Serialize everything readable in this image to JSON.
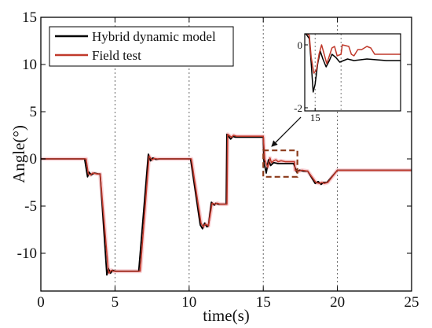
{
  "chart_data": {
    "type": "line",
    "xlabel": "time(s)",
    "ylabel": "Angle(°)",
    "xlim": [
      0,
      25
    ],
    "ylim": [
      -14,
      15
    ],
    "xticks": [
      0,
      5,
      10,
      15,
      20,
      25
    ],
    "yticks": [
      15,
      10,
      5,
      0,
      -5,
      -10
    ],
    "vlines": [
      5,
      10,
      15,
      20
    ],
    "legend_position": "top-left",
    "series": [
      {
        "name": "Hybrid dynamic model",
        "color": "#000000",
        "x": [
          0,
          2.95,
          3.15,
          3.25,
          3.4,
          3.6,
          3.9,
          4.0,
          4.45,
          4.55,
          4.7,
          4.85,
          5.0,
          5.3,
          6.0,
          6.55,
          6.6,
          7.25,
          7.4,
          7.55,
          7.75,
          8.0,
          9.0,
          10.0,
          10.1,
          10.75,
          10.9,
          11.05,
          11.2,
          11.3,
          11.5,
          11.7,
          11.8,
          11.95,
          12.1,
          12.25,
          12.5,
          12.55,
          12.8,
          12.95,
          13.1,
          13.4,
          14.5,
          15.0,
          15.05,
          15.2,
          15.35,
          15.5,
          15.7,
          16.0,
          17.0,
          17.05,
          17.25,
          17.45,
          17.7,
          18.0,
          18.5,
          18.7,
          18.9,
          19.05,
          19.3,
          20.0,
          22.0,
          25.0
        ],
        "y": [
          0,
          0,
          -1.9,
          -1.4,
          -1.7,
          -1.5,
          -1.6,
          -1.6,
          -12.3,
          -11.6,
          -12.1,
          -11.8,
          -11.9,
          -11.9,
          -11.9,
          -11.9,
          -11.9,
          0.5,
          -0.2,
          0.1,
          -0.05,
          0,
          0,
          0,
          0,
          -7.0,
          -7.4,
          -6.8,
          -7.2,
          -7.1,
          -4.6,
          -4.9,
          -4.7,
          -4.8,
          -4.8,
          -4.8,
          -4.8,
          2.6,
          2.1,
          2.4,
          2.3,
          2.3,
          2.3,
          2.3,
          -0.4,
          -1.5,
          -0.1,
          -0.7,
          -0.4,
          -0.5,
          -0.5,
          -0.5,
          -1.4,
          -1.2,
          -1.3,
          -1.3,
          -2.6,
          -2.4,
          -2.7,
          -2.5,
          -2.5,
          -1.2,
          -1.2,
          -1.2
        ]
      },
      {
        "name": "Field test",
        "color": "#c0392b",
        "x": [
          0,
          3.05,
          3.2,
          3.35,
          3.5,
          3.8,
          4.0,
          4.55,
          4.6,
          4.75,
          4.9,
          5.1,
          6.0,
          6.6,
          6.7,
          7.3,
          7.5,
          7.65,
          7.85,
          8.0,
          10.0,
          10.15,
          10.8,
          10.95,
          11.1,
          11.3,
          11.55,
          11.75,
          11.9,
          12.1,
          12.55,
          12.6,
          12.85,
          13.0,
          13.2,
          14.5,
          15.0,
          15.1,
          15.3,
          15.45,
          15.55,
          15.7,
          15.85,
          16.0,
          16.2,
          16.5,
          17.1,
          17.15,
          17.4,
          17.6,
          18.0,
          18.55,
          18.8,
          18.95,
          19.1,
          19.35,
          20.0,
          25.0
        ],
        "y": [
          0,
          0,
          -1.6,
          -1.7,
          -1.5,
          -1.6,
          -1.6,
          -11.9,
          -12.1,
          -11.8,
          -11.9,
          -11.9,
          -11.9,
          -11.9,
          -11.9,
          0.3,
          -0.1,
          0.05,
          0,
          0,
          0,
          0,
          -6.8,
          -7.2,
          -6.9,
          -7.1,
          -4.7,
          -4.8,
          -4.7,
          -4.8,
          -4.8,
          2.6,
          2.3,
          2.5,
          2.4,
          2.4,
          2.4,
          -0.1,
          -0.9,
          0.1,
          -0.4,
          -0.2,
          -0.1,
          -0.3,
          -0.2,
          -0.3,
          -0.3,
          -1.2,
          -1.3,
          -1.2,
          -1.3,
          -2.5,
          -2.6,
          -2.5,
          -2.6,
          -2.5,
          -1.2,
          -1.2
        ]
      }
    ],
    "zoom_box": {
      "x0": 15.0,
      "x1": 17.3,
      "y0": -1.9,
      "y1": 0.9,
      "color": "#8b3a1a"
    },
    "inset": {
      "xlim": [
        14.2,
        21.6
      ],
      "ylim": [
        -2.1,
        0.35
      ],
      "xticks": [
        15
      ],
      "yticks": [
        0,
        -2
      ],
      "xgrid": [
        15,
        17
      ],
      "series": [
        {
          "name": "Hybrid dynamic model",
          "color": "#000000",
          "x": [
            14.2,
            14.55,
            14.7,
            14.85,
            15.0,
            15.2,
            15.4,
            15.6,
            15.85,
            16.1,
            16.3,
            16.6,
            16.9,
            17.2,
            17.5,
            18.0,
            19.0,
            20.5,
            21.6
          ],
          "y": [
            0.4,
            0.2,
            -0.6,
            -1.5,
            -1.25,
            -0.6,
            -0.2,
            -0.45,
            -0.7,
            -0.5,
            -0.3,
            -0.4,
            -0.55,
            -0.5,
            -0.45,
            -0.5,
            -0.45,
            -0.5,
            -0.5
          ]
        },
        {
          "name": "Field test",
          "color": "#c0392b",
          "x": [
            14.2,
            14.55,
            14.7,
            14.9,
            15.1,
            15.3,
            15.5,
            15.7,
            15.9,
            16.1,
            16.3,
            16.5,
            16.7,
            17.0,
            17.1,
            17.6,
            17.8,
            18.0,
            18.3,
            18.6,
            19.0,
            19.3,
            19.6,
            20.0,
            20.4,
            21.0,
            21.6
          ],
          "y": [
            0.4,
            0.3,
            -0.4,
            -0.9,
            -0.8,
            -0.3,
            0.0,
            -0.3,
            -0.6,
            -0.35,
            -0.1,
            -0.05,
            -0.35,
            -0.3,
            0.0,
            -0.05,
            -0.3,
            -0.35,
            -0.15,
            -0.15,
            -0.05,
            -0.1,
            -0.3,
            -0.3,
            -0.3,
            -0.3,
            -0.3
          ]
        }
      ]
    }
  }
}
